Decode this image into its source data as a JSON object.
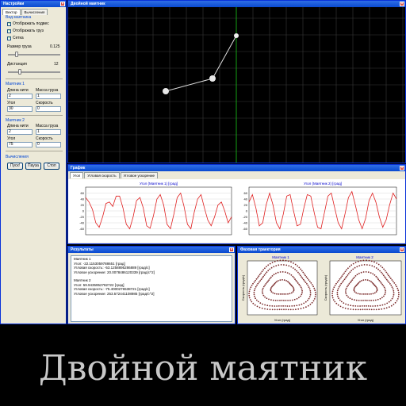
{
  "settings": {
    "title": "Настройки",
    "tabs": [
      "Вектор",
      "Вычисления"
    ],
    "view_group": "Вид маятника",
    "checkboxes": [
      {
        "label": "Отображать подвес",
        "checked": true
      },
      {
        "label": "Отображать груз",
        "checked": true
      },
      {
        "label": "Сетка",
        "checked": true
      }
    ],
    "weight_size_label": "Размер груза",
    "weight_size_value": "0.125",
    "weight_size_level": 0.15,
    "accuracy_label": "Дистанция",
    "accuracy_value": "12",
    "accuracy_level": 0.2,
    "pendulum1": {
      "group": "Маятник 1",
      "length_label": "Длина нити",
      "length_value": "2",
      "mass_label": "Масса груза",
      "mass_value": "1",
      "angle_label": "Угол",
      "angle_value": "30",
      "speed_label": "Скорость",
      "speed_value": "0"
    },
    "pendulum2": {
      "group": "Маятник 2",
      "length_label": "Длина нити",
      "length_value": "2",
      "mass_label": "Масса груза",
      "mass_value": "1",
      "angle_label": "Угол",
      "angle_value": "75",
      "speed_label": "Скорость",
      "speed_value": "0"
    },
    "calc_group": "Вычисления",
    "buttons": [
      "Пуск!",
      "Пауза",
      "Стоп"
    ]
  },
  "pendulum_view": {
    "title": "Двойной маятник"
  },
  "graphs": {
    "title": "График",
    "tabs": [
      "Угол",
      "Угловая скорость",
      "Угловое ускорение"
    ]
  },
  "chart_data": [
    {
      "type": "line",
      "title": "Угол (Маятник 1) [град]",
      "ylim": [
        -80,
        80
      ],
      "yticks": [
        "60",
        "40",
        "20",
        "0",
        "-20",
        "-40",
        "-60"
      ],
      "values": [
        45,
        30,
        5,
        -40,
        -55,
        -20,
        25,
        30,
        15,
        50,
        50,
        10,
        -45,
        -60,
        -20,
        35,
        45,
        10,
        -50,
        -58,
        -15,
        40,
        55,
        20,
        -45,
        -60,
        -10,
        45,
        60,
        15,
        -45,
        -60,
        -5,
        40,
        55,
        10,
        -30,
        -50,
        -20,
        20,
        30,
        0,
        -40,
        -20
      ]
    },
    {
      "type": "line",
      "title": "Угол (Маятник 2) [град]",
      "ylim": [
        -80,
        80
      ],
      "yticks": [
        "60",
        "40",
        "20",
        "0",
        "-20",
        "-40",
        "-60"
      ],
      "values": [
        30,
        55,
        10,
        -50,
        -40,
        20,
        60,
        20,
        -40,
        -60,
        -10,
        50,
        55,
        0,
        -50,
        -45,
        10,
        55,
        50,
        -5,
        -55,
        -60,
        -5,
        50,
        60,
        10,
        -40,
        -60,
        -10,
        45,
        65,
        20,
        -30,
        -60,
        -25,
        35,
        60,
        30,
        -20,
        -55,
        -30,
        20,
        60,
        40
      ]
    }
  ],
  "results": {
    "title": "Результаты",
    "lines": [
      "Маятник 1",
      "Угол: -22.1153059788651 [град]",
      "Угловая скорость: -53.1258895286889 [град/с]",
      "Угловое ускорение: 20.0078486120339 [град/с^2]",
      "",
      "Маятник 2",
      "Угол: 59.9435952782722 [град]",
      "Угловая скорость: -75.4000276538721 [град/с]",
      "Угловое ускорение: 253.572441108985 [град/с^2]"
    ]
  },
  "phase": {
    "title": "Фазовая траектория",
    "plots": [
      {
        "title": "Маятник 1",
        "xlabel": "Угол (град)",
        "ylabel": "Скорость (град/с)"
      },
      {
        "title": "Маятник 2",
        "xlabel": "Угол (град)",
        "ylabel": "Скорость (град/с)"
      }
    ]
  },
  "caption": "Двойной маятник"
}
